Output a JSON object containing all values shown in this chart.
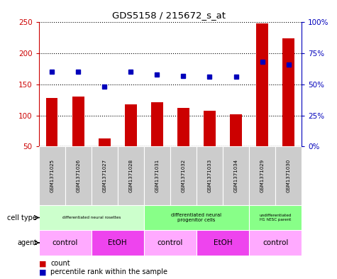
{
  "title": "GDS5158 / 215672_s_at",
  "samples": [
    "GSM1371025",
    "GSM1371026",
    "GSM1371027",
    "GSM1371028",
    "GSM1371031",
    "GSM1371032",
    "GSM1371033",
    "GSM1371034",
    "GSM1371029",
    "GSM1371030"
  ],
  "counts": [
    128,
    130,
    63,
    118,
    121,
    112,
    107,
    102,
    248,
    224
  ],
  "percentiles": [
    60,
    60,
    48,
    60,
    58,
    57,
    56,
    56,
    68,
    66
  ],
  "ylim_left": [
    50,
    250
  ],
  "ylim_right": [
    0,
    100
  ],
  "yticks_left": [
    50,
    100,
    150,
    200,
    250
  ],
  "yticks_right": [
    0,
    25,
    50,
    75,
    100
  ],
  "ytick_labels_right": [
    "0%",
    "25%",
    "50%",
    "75%",
    "100%"
  ],
  "bar_color": "#cc0000",
  "dot_color": "#0000bb",
  "bar_width": 0.45,
  "cell_type_groups": [
    {
      "label": "differentiated neural rosettes",
      "start": 0,
      "end": 4,
      "color": "#ccffcc",
      "fontsize": 6.5
    },
    {
      "label": "differentiated neural\nprogenitor cells",
      "start": 4,
      "end": 8,
      "color": "#88ff88",
      "fontsize": 8
    },
    {
      "label": "undifferentiated\nH1 hESC parent",
      "start": 8,
      "end": 10,
      "color": "#88ff88",
      "fontsize": 6.5
    }
  ],
  "agent_groups": [
    {
      "label": "control",
      "start": 0,
      "end": 2,
      "color": "#ffaaff"
    },
    {
      "label": "EtOH",
      "start": 2,
      "end": 4,
      "color": "#ee44ee"
    },
    {
      "label": "control",
      "start": 4,
      "end": 6,
      "color": "#ffaaff"
    },
    {
      "label": "EtOH",
      "start": 6,
      "end": 8,
      "color": "#ee44ee"
    },
    {
      "label": "control",
      "start": 8,
      "end": 10,
      "color": "#ffaaff"
    }
  ],
  "bg_color": "#ffffff",
  "tick_color_left": "#cc0000",
  "tick_color_right": "#0000bb",
  "sample_bg": "#cccccc"
}
